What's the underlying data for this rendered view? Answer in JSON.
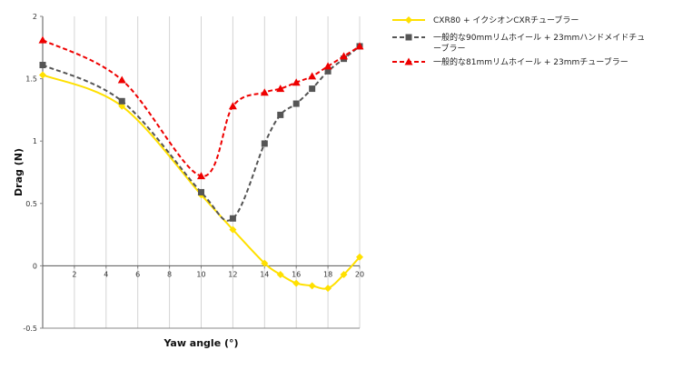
{
  "chart_data": {
    "type": "line",
    "title": "",
    "xlabel": "Yaw angle (°)",
    "ylabel": "Drag (N)",
    "xlim": [
      0,
      20
    ],
    "ylim": [
      -0.5,
      2
    ],
    "x_ticks": [
      "2",
      "4",
      "6",
      "8",
      "10",
      "12",
      "14",
      "16",
      "18",
      "20"
    ],
    "y_ticks": [
      "2",
      "1.5",
      "1",
      "0.5",
      "0",
      "-0.5"
    ],
    "grid": "vertical",
    "legend_position": "right",
    "series": [
      {
        "name": "CXR80 + イクシオンCXRチューブラー",
        "color": "#ffe000",
        "line_style": "solid",
        "marker": "diamond",
        "x": [
          0,
          5,
          10,
          12,
          14,
          15,
          16,
          17,
          18,
          19,
          20
        ],
        "y": [
          1.53,
          1.28,
          0.57,
          0.29,
          0.02,
          -0.07,
          -0.14,
          -0.16,
          -0.18,
          -0.07,
          0.07
        ]
      },
      {
        "name": "一般的な90mmリムホイール + 23mmハンドメイドチューブラー",
        "color": "#555555",
        "line_style": "dashed",
        "marker": "square",
        "x": [
          0,
          5,
          10,
          12,
          14,
          15,
          16,
          17,
          18,
          19,
          20
        ],
        "y": [
          1.61,
          1.32,
          0.59,
          0.38,
          0.98,
          1.21,
          1.3,
          1.42,
          1.56,
          1.66,
          1.76
        ]
      },
      {
        "name": "一般的な81mmリムホイール + 23mmチューブラー",
        "color": "#ee0000",
        "line_style": "dashed",
        "marker": "triangle",
        "x": [
          0,
          5,
          10,
          12,
          14,
          15,
          16,
          17,
          18,
          19,
          20
        ],
        "y": [
          1.81,
          1.49,
          0.72,
          1.28,
          1.39,
          1.42,
          1.47,
          1.52,
          1.6,
          1.68,
          1.76
        ]
      }
    ]
  }
}
